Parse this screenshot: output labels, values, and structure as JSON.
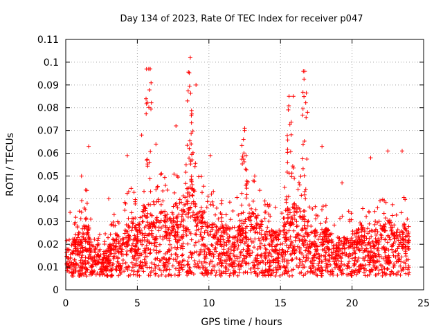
{
  "chart_data": {
    "type": "scatter",
    "title": "Day 134 of 2023, Rate Of TEC Index for receiver p047",
    "xlabel": "GPS time / hours",
    "ylabel": "ROTI / TECUs",
    "xlim": [
      0,
      25
    ],
    "ylim": [
      0,
      0.11
    ],
    "x_ticks": [
      "0",
      "5",
      "10",
      "15",
      "20",
      "25"
    ],
    "y_ticks": [
      "0",
      "0.01",
      "0.02",
      "0.03",
      "0.04",
      "0.05",
      "0.06",
      "0.07",
      "0.08",
      "0.09",
      "0.1",
      "0.11"
    ],
    "grid": true,
    "marker": "plus",
    "color": "#ff0000",
    "x": [
      0.2,
      0.5,
      0.8,
      1.0,
      1.3,
      1.5,
      1.7,
      2.0,
      2.3,
      2.6,
      2.9,
      3.2,
      3.5,
      3.8,
      4.1,
      4.4,
      4.6,
      4.8,
      5.0,
      5.2,
      5.4,
      5.6,
      5.7,
      5.8,
      6.0,
      6.2,
      6.5,
      6.8,
      7.0,
      7.3,
      7.5,
      7.8,
      8.0,
      8.2,
      8.4,
      8.6,
      8.7,
      8.8,
      8.9,
      9.0,
      9.2,
      9.5,
      9.8,
      10.0,
      10.3,
      10.6,
      11.0,
      11.4,
      11.8,
      12.2,
      12.4,
      12.6,
      13.0,
      13.4,
      13.8,
      14.2,
      14.6,
      15.0,
      15.4,
      15.6,
      15.8,
      16.0,
      16.2,
      16.5,
      16.7,
      16.9,
      17.2,
      17.6,
      18.0,
      18.3,
      18.7,
      19.1,
      19.5,
      19.9,
      20.3,
      20.7,
      21.1,
      21.5,
      21.9,
      22.3,
      22.6,
      23.0,
      23.3,
      23.6,
      23.9,
      0.3,
      1.1,
      1.6,
      3.0,
      4.3,
      5.3,
      5.9,
      6.3,
      7.7,
      8.5,
      9.1,
      10.1,
      12.5,
      13.2,
      15.3,
      15.9,
      16.6,
      17.9,
      19.3,
      21.3,
      22.5,
      23.5
    ],
    "y": [
      0.014,
      0.016,
      0.018,
      0.02,
      0.022,
      0.025,
      0.017,
      0.013,
      0.015,
      0.012,
      0.014,
      0.016,
      0.019,
      0.018,
      0.02,
      0.024,
      0.026,
      0.022,
      0.021,
      0.025,
      0.03,
      0.028,
      0.032,
      0.027,
      0.024,
      0.022,
      0.026,
      0.028,
      0.025,
      0.024,
      0.027,
      0.03,
      0.028,
      0.031,
      0.033,
      0.035,
      0.036,
      0.038,
      0.034,
      0.031,
      0.029,
      0.027,
      0.026,
      0.024,
      0.023,
      0.02,
      0.022,
      0.021,
      0.02,
      0.024,
      0.026,
      0.025,
      0.027,
      0.025,
      0.022,
      0.02,
      0.019,
      0.02,
      0.022,
      0.026,
      0.029,
      0.031,
      0.028,
      0.026,
      0.027,
      0.024,
      0.02,
      0.019,
      0.02,
      0.021,
      0.018,
      0.017,
      0.018,
      0.019,
      0.02,
      0.021,
      0.02,
      0.019,
      0.021,
      0.022,
      0.023,
      0.021,
      0.02,
      0.022,
      0.019,
      0.034,
      0.05,
      0.063,
      0.04,
      0.059,
      0.068,
      0.097,
      0.064,
      0.072,
      0.083,
      0.09,
      0.059,
      0.071,
      0.05,
      0.045,
      0.085,
      0.096,
      0.063,
      0.047,
      0.058,
      0.061,
      0.061
    ],
    "spikes": [
      {
        "x": 5.8,
        "y": 0.097
      },
      {
        "x": 8.7,
        "y": 0.102
      },
      {
        "x": 16.7,
        "y": 0.096
      },
      {
        "x": 15.6,
        "y": 0.085
      },
      {
        "x": 12.5,
        "y": 0.07
      }
    ]
  }
}
